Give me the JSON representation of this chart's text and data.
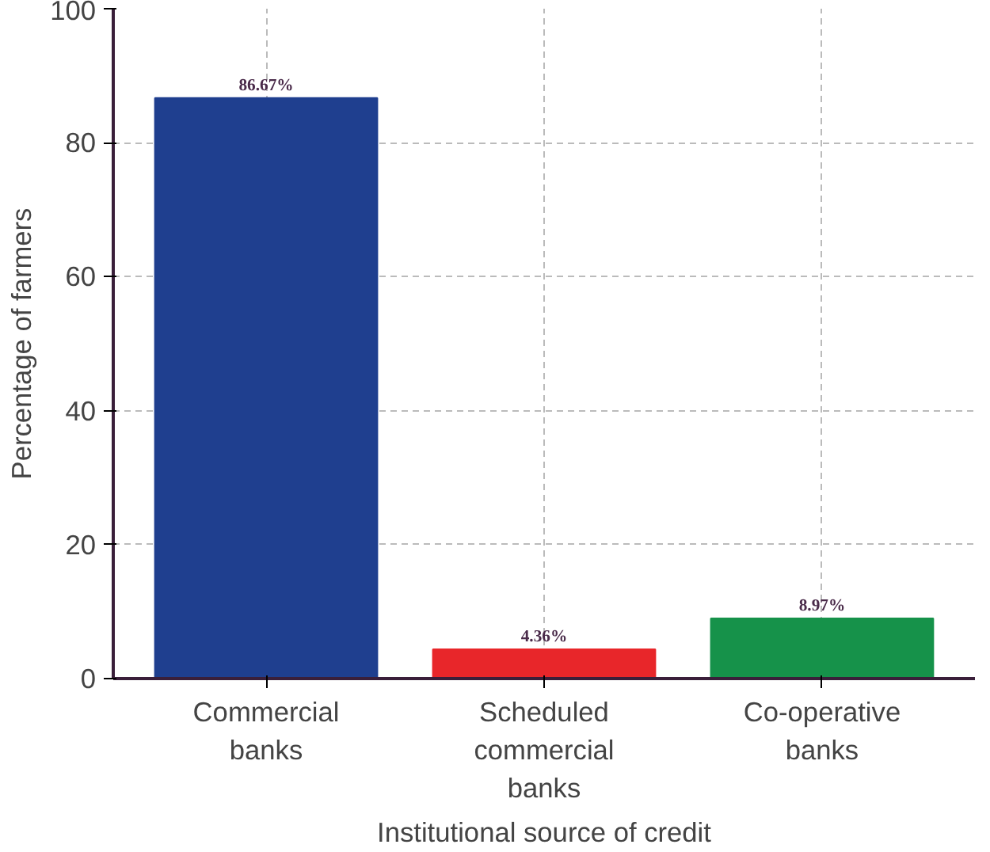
{
  "chart_data": {
    "type": "bar",
    "xlabel": "Institutional source of credit",
    "ylabel": "Percentage of farmers",
    "categories": [
      "Commercial\nbanks",
      "Scheduled\ncommercial\nbanks",
      "Co-operative\nbanks"
    ],
    "values": [
      86.67,
      4.36,
      8.97
    ],
    "colors": [
      "#1f3f8f",
      "#e8262a",
      "#16924a"
    ],
    "value_labels": [
      "86.67%",
      "4.36%",
      "8.97%"
    ],
    "ylim": [
      0,
      100
    ],
    "yticks": [
      0,
      20,
      40,
      60,
      80,
      100
    ],
    "grid": true
  }
}
